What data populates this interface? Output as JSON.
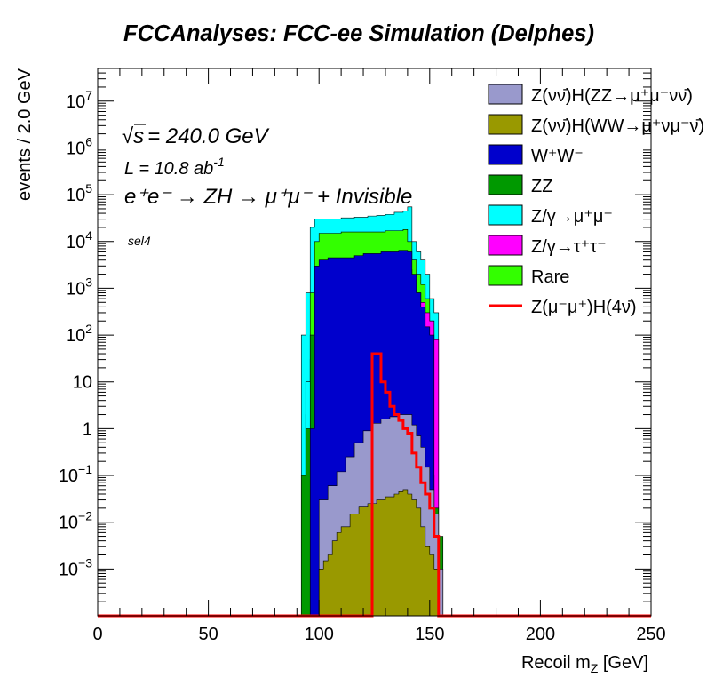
{
  "chart_data": {
    "type": "area",
    "title": "FCCAnalyses: FCC-ee Simulation (Delphes)",
    "xlabel": "Recoil m_Z [GeV]",
    "ylabel": "events / 2.0 GeV",
    "xlim": [
      0,
      250
    ],
    "ylim": [
      0.0001,
      50000000
    ],
    "yscale": "log",
    "grid": false,
    "legend_position": "top-right",
    "x_ticks": [
      "0",
      "50",
      "100",
      "150",
      "200",
      "250"
    ],
    "y_ticks": [
      {
        "value": 0.001,
        "label": "10^-3"
      },
      {
        "value": 0.01,
        "label": "10^-2"
      },
      {
        "value": 0.1,
        "label": "10^-1"
      },
      {
        "value": 1,
        "label": "1"
      },
      {
        "value": 10,
        "label": "10"
      },
      {
        "value": 100,
        "label": "10^2"
      },
      {
        "value": 1000,
        "label": "10^3"
      },
      {
        "value": 10000,
        "label": "10^4"
      },
      {
        "value": 100000,
        "label": "10^5"
      },
      {
        "value": 1000000,
        "label": "10^6"
      },
      {
        "value": 10000000,
        "label": "10^7"
      }
    ],
    "annotations": {
      "sqrt_s": "= 240.0 GeV",
      "lumi_prefix": "L = 10.8 ab",
      "lumi_exp": "-1",
      "process": "e⁺e⁻ → ZH → μ⁺μ⁻ + Invisible",
      "selection": "sel4"
    },
    "stack_total": [
      [
        92,
        100
      ],
      [
        94,
        800
      ],
      [
        96,
        20000
      ],
      [
        98,
        30000
      ],
      [
        100,
        30000
      ],
      [
        104,
        30000
      ],
      [
        110,
        32000
      ],
      [
        116,
        33000
      ],
      [
        122,
        35000
      ],
      [
        126,
        36000
      ],
      [
        130,
        38000
      ],
      [
        134,
        42000
      ],
      [
        138,
        45000
      ],
      [
        140,
        55000
      ],
      [
        142,
        10000
      ],
      [
        144,
        6000
      ],
      [
        146,
        4000
      ],
      [
        148,
        2000
      ],
      [
        150,
        600
      ],
      [
        152,
        300
      ],
      [
        154,
        0.001
      ]
    ],
    "series": [
      {
        "name": "Z(νν̄)H(ZZ→μ⁺μ⁻νν̄)",
        "color": "#9999cc",
        "points": [
          [
            100,
            0.03
          ],
          [
            104,
            0.06
          ],
          [
            108,
            0.12
          ],
          [
            112,
            0.25
          ],
          [
            116,
            0.5
          ],
          [
            120,
            0.9
          ],
          [
            124,
            1.3
          ],
          [
            128,
            1.6
          ],
          [
            132,
            1.8
          ],
          [
            136,
            2.0
          ],
          [
            140,
            2.0
          ],
          [
            142,
            1.2
          ],
          [
            144,
            0.7
          ],
          [
            146,
            0.4
          ],
          [
            148,
            0.15
          ],
          [
            150,
            0.05
          ],
          [
            152,
            0.015
          ],
          [
            154,
            0.001
          ]
        ]
      },
      {
        "name": "Z(νν̄)H(WW→μ⁺νμ⁻ν̄)",
        "color": "#999900",
        "points": [
          [
            100,
            0.001
          ],
          [
            102,
            0.0015
          ],
          [
            104,
            0.002
          ],
          [
            106,
            0.004
          ],
          [
            108,
            0.006
          ],
          [
            110,
            0.008
          ],
          [
            114,
            0.015
          ],
          [
            118,
            0.022
          ],
          [
            122,
            0.025
          ],
          [
            126,
            0.03
          ],
          [
            130,
            0.035
          ],
          [
            134,
            0.04
          ],
          [
            136,
            0.045
          ],
          [
            138,
            0.05
          ],
          [
            140,
            0.04
          ],
          [
            142,
            0.03
          ],
          [
            144,
            0.02
          ],
          [
            146,
            0.008
          ],
          [
            148,
            0.003
          ],
          [
            150,
            0.002
          ],
          [
            152,
            0.001
          ]
        ]
      },
      {
        "name": "W⁺W⁻",
        "color": "#0000cc",
        "points": [
          [
            96,
            1
          ],
          [
            98,
            3000
          ],
          [
            100,
            4000
          ],
          [
            104,
            4500
          ],
          [
            110,
            4500
          ],
          [
            116,
            5000
          ],
          [
            120,
            5500
          ],
          [
            124,
            5500
          ],
          [
            128,
            6000
          ],
          [
            132,
            6000
          ],
          [
            136,
            6500
          ],
          [
            140,
            6000
          ],
          [
            142,
            2000
          ],
          [
            144,
            800
          ],
          [
            146,
            400
          ],
          [
            148,
            150
          ],
          [
            150,
            100
          ]
        ]
      },
      {
        "name": "ZZ",
        "color": "#009900",
        "points": [
          [
            92,
            0.1
          ],
          [
            94,
            1
          ],
          [
            96,
            100
          ],
          [
            98,
            1500
          ],
          [
            100,
            2000
          ],
          [
            104,
            1500
          ],
          [
            108,
            1200
          ],
          [
            112,
            900
          ],
          [
            116,
            700
          ],
          [
            120,
            500
          ],
          [
            124,
            300
          ],
          [
            128,
            180
          ],
          [
            132,
            100
          ],
          [
            136,
            60
          ],
          [
            140,
            30
          ],
          [
            142,
            12
          ],
          [
            144,
            5
          ],
          [
            146,
            2
          ],
          [
            148,
            0.5
          ],
          [
            150,
            0.1
          ],
          [
            152,
            0.02
          ],
          [
            154,
            0.005
          ]
        ]
      },
      {
        "name": "Z/γ→μ⁺μ⁻",
        "color": "#00ffff",
        "points": [
          [
            94,
            10
          ],
          [
            96,
            30
          ],
          [
            98,
            200
          ],
          [
            100,
            300
          ],
          [
            110,
            320
          ],
          [
            120,
            330
          ],
          [
            130,
            320
          ],
          [
            138,
            300
          ],
          [
            140,
            200
          ],
          [
            142,
            50
          ],
          [
            144,
            10
          ]
        ]
      },
      {
        "name": "Z/γ→τ⁺τ⁻",
        "color": "#ff00ff",
        "points": [
          [
            100,
            0.5
          ],
          [
            108,
            5
          ],
          [
            114,
            30
          ],
          [
            118,
            100
          ],
          [
            122,
            300
          ],
          [
            126,
            600
          ],
          [
            130,
            1000
          ],
          [
            134,
            1500
          ],
          [
            138,
            2000
          ],
          [
            140,
            2500
          ],
          [
            142,
            1500
          ],
          [
            144,
            800
          ],
          [
            146,
            500
          ],
          [
            148,
            300
          ],
          [
            150,
            200
          ],
          [
            152,
            80
          ]
        ]
      },
      {
        "name": "Rare",
        "color": "#33ff00",
        "points": [
          [
            94,
            2
          ],
          [
            96,
            800
          ],
          [
            98,
            10000
          ],
          [
            100,
            15000
          ],
          [
            110,
            16000
          ],
          [
            120,
            16000
          ],
          [
            130,
            17000
          ],
          [
            138,
            18000
          ],
          [
            140,
            10000
          ],
          [
            142,
            4000
          ],
          [
            144,
            2000
          ],
          [
            146,
            1200
          ],
          [
            148,
            600
          ],
          [
            150,
            200
          ],
          [
            152,
            80
          ]
        ]
      },
      {
        "name": "Z(μ⁻μ⁺)H(4ν̄)",
        "color": "#ff0000",
        "style": "line",
        "points": [
          [
            0,
            0.0001
          ],
          [
            122,
            0.0001
          ],
          [
            124,
            40
          ],
          [
            126,
            40
          ],
          [
            128,
            10
          ],
          [
            130,
            6
          ],
          [
            132,
            3
          ],
          [
            134,
            2
          ],
          [
            136,
            1.5
          ],
          [
            138,
            1
          ],
          [
            140,
            0.8
          ],
          [
            142,
            0.3
          ],
          [
            144,
            0.15
          ],
          [
            146,
            0.07
          ],
          [
            148,
            0.04
          ],
          [
            150,
            0.02
          ],
          [
            152,
            0.005
          ],
          [
            154,
            0.0001
          ],
          [
            250,
            0.0001
          ]
        ]
      }
    ]
  }
}
